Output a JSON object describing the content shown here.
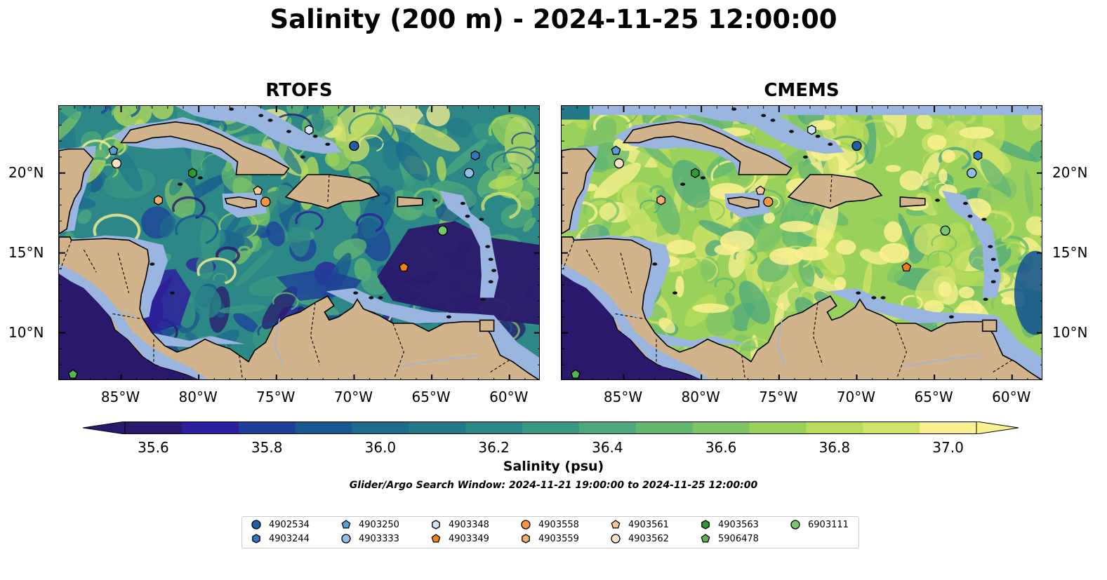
{
  "title": "Salinity (200 m) - 2024-11-25 12:00:00",
  "panels": [
    {
      "title": "RTOFS",
      "id": "rtofs"
    },
    {
      "title": "CMEMS",
      "id": "cmems"
    }
  ],
  "lon_ticks": [
    "85°W",
    "80°W",
    "75°W",
    "70°W",
    "65°W",
    "60°W"
  ],
  "lat_ticks": [
    "20°N",
    "15°N",
    "10°N"
  ],
  "colorbar": {
    "label": "Salinity (psu)",
    "ticks": [
      "35.6",
      "35.8",
      "36.0",
      "36.2",
      "36.4",
      "36.6",
      "36.8",
      "37.0"
    ],
    "colors": [
      "#2a186c",
      "#2d1e9c",
      "#1e3f99",
      "#18588f",
      "#1c6a8c",
      "#23798a",
      "#2c8886",
      "#3a9882",
      "#4ea87d",
      "#63b771",
      "#7ec466",
      "#9ad15b",
      "#b9dc5a",
      "#d2e36a",
      "#fbf192"
    ],
    "under_color": "#2a186c",
    "over_color": "#fbf192"
  },
  "search_window": "Glider/Argo Search Window: 2024-11-21 19:00:00 to 2024-11-25 12:00:00",
  "land_color": "#d2b48c",
  "shelf_color": "#9ab5e0",
  "legend": [
    {
      "id": "4902534",
      "marker": "circle",
      "color": "#1f5fa8"
    },
    {
      "id": "4903244",
      "marker": "hexagon",
      "color": "#2f78c4"
    },
    {
      "id": "4903250",
      "marker": "pentagon",
      "color": "#5a9ed8"
    },
    {
      "id": "4903333",
      "marker": "circle",
      "color": "#8ec0ea"
    },
    {
      "id": "4903348",
      "marker": "hexagon",
      "color": "#cfe6f8"
    },
    {
      "id": "4903349",
      "marker": "pentagon",
      "color": "#f57f12"
    },
    {
      "id": "4903558",
      "marker": "circle",
      "color": "#f59640"
    },
    {
      "id": "4903559",
      "marker": "hexagon",
      "color": "#f8ac6a"
    },
    {
      "id": "4903561",
      "marker": "pentagon",
      "color": "#fac897"
    },
    {
      "id": "4903562",
      "marker": "circle",
      "color": "#fde2c6"
    },
    {
      "id": "4903563",
      "marker": "hexagon",
      "color": "#2e9a30"
    },
    {
      "id": "5906478",
      "marker": "pentagon",
      "color": "#53b84e"
    },
    {
      "id": "6903111",
      "marker": "circle",
      "color": "#74c96a"
    }
  ],
  "floats": [
    {
      "id": "4902534",
      "lon": -70.0,
      "lat": 21.7
    },
    {
      "id": "4903244",
      "lon": -62.2,
      "lat": 21.1
    },
    {
      "id": "4903250",
      "lon": -85.5,
      "lat": 21.4
    },
    {
      "id": "4903333",
      "lon": -62.6,
      "lat": 20.0
    },
    {
      "id": "4903348",
      "lon": -72.9,
      "lat": 22.7
    },
    {
      "id": "4903349",
      "lon": -66.8,
      "lat": 14.1
    },
    {
      "id": "4903558",
      "lon": -75.7,
      "lat": 18.2
    },
    {
      "id": "4903559",
      "lon": -82.6,
      "lat": 18.3
    },
    {
      "id": "4903561",
      "lon": -76.2,
      "lat": 18.9
    },
    {
      "id": "4903562",
      "lon": -85.3,
      "lat": 20.6
    },
    {
      "id": "4903563",
      "lon": -80.4,
      "lat": 20.0
    },
    {
      "id": "5906478",
      "lon": -88.1,
      "lat": 7.4
    },
    {
      "id": "6903111",
      "lon": -64.3,
      "lat": 16.4
    }
  ],
  "map_extent": {
    "lon_min": -89.0,
    "lon_max": -58.0,
    "lat_min": 7.0,
    "lat_max": 24.2
  }
}
